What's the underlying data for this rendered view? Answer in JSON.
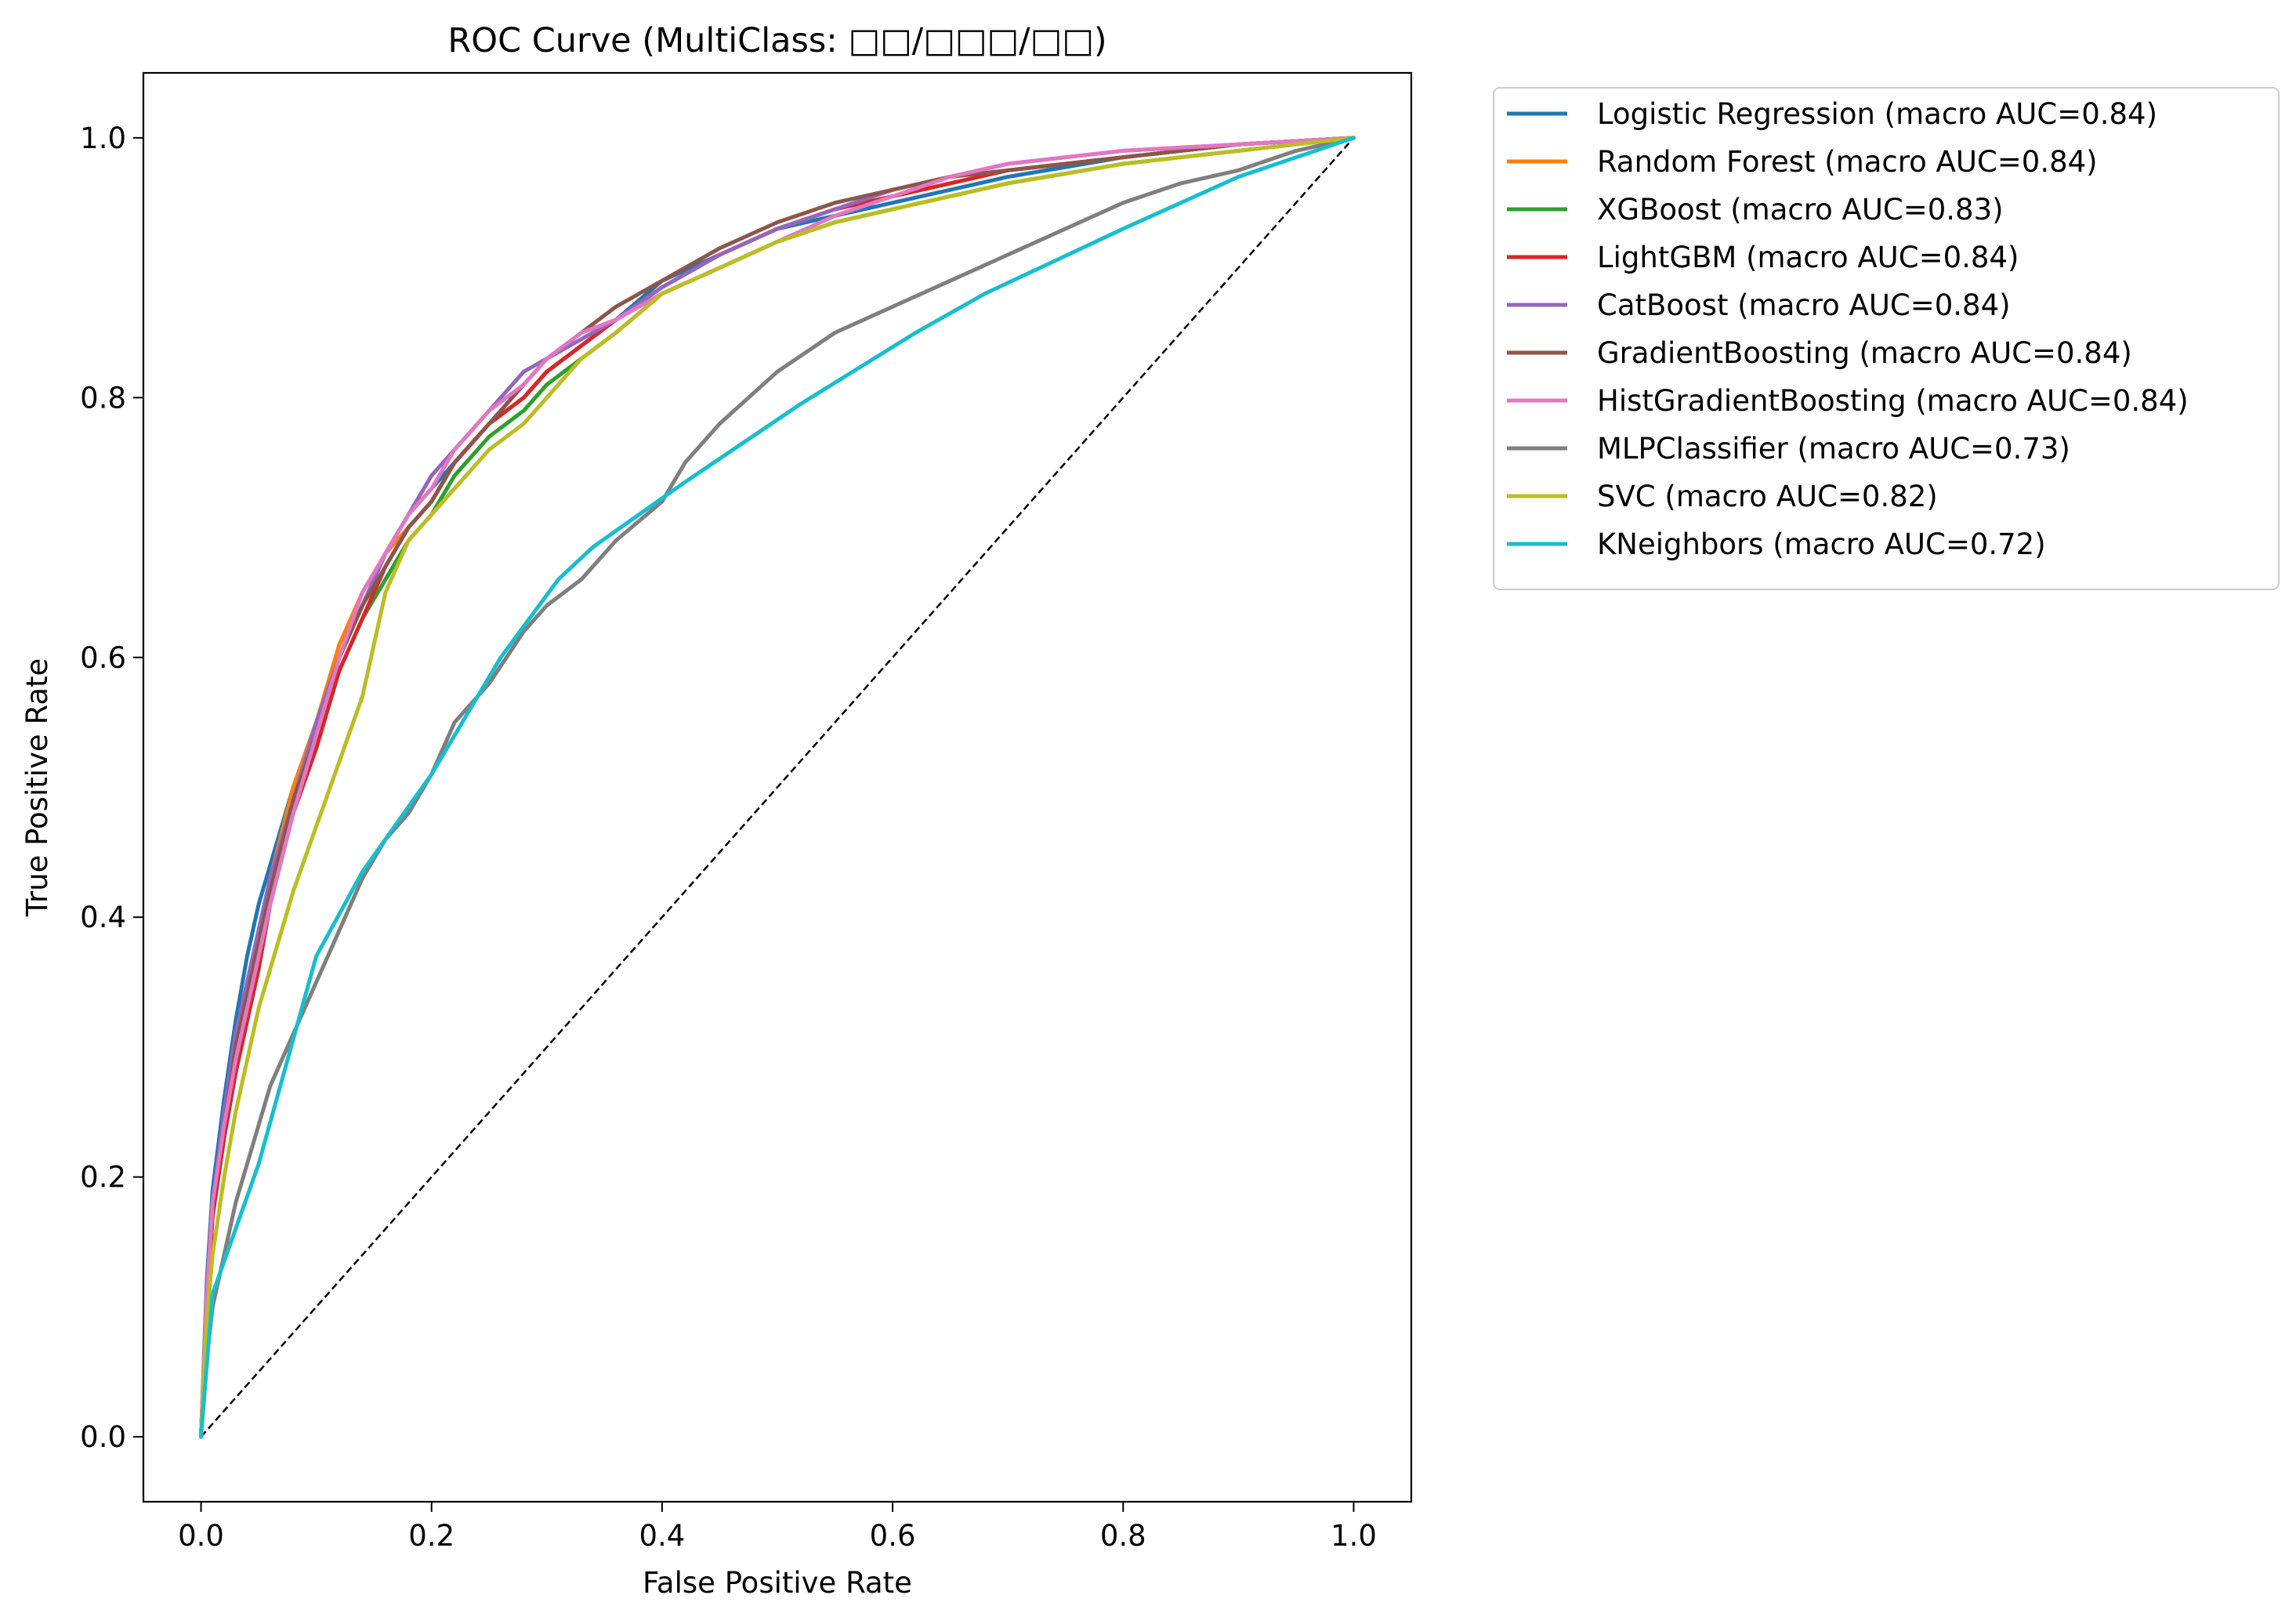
{
  "chart_data": {
    "type": "line",
    "title": "ROC Curve (MultiClass: □□/□□□/□□)",
    "xlabel": "False Positive Rate",
    "ylabel": "True Positive Rate",
    "xlim": [
      -0.05,
      1.05
    ],
    "ylim": [
      -0.05,
      1.05
    ],
    "xticks": [
      "0.0",
      "0.2",
      "0.4",
      "0.6",
      "0.8",
      "1.0"
    ],
    "yticks": [
      "0.0",
      "0.2",
      "0.4",
      "0.6",
      "0.8",
      "1.0"
    ],
    "grid": false,
    "legend_position": "outside top-right",
    "diagonal": {
      "style": "dashed",
      "color": "#000000",
      "points": [
        [
          0,
          0
        ],
        [
          1,
          1
        ]
      ]
    },
    "series": [
      {
        "name": "Logistic Regression (macro AUC=0.84)",
        "color": "#1f77b4",
        "x": [
          0,
          0.005,
          0.01,
          0.02,
          0.03,
          0.04,
          0.05,
          0.06,
          0.08,
          0.1,
          0.12,
          0.14,
          0.16,
          0.18,
          0.2,
          0.22,
          0.25,
          0.28,
          0.3,
          0.33,
          0.36,
          0.4,
          0.45,
          0.5,
          0.55,
          0.6,
          0.65,
          0.7,
          0.8,
          0.9,
          1.0
        ],
        "y": [
          0,
          0.12,
          0.19,
          0.26,
          0.32,
          0.37,
          0.41,
          0.44,
          0.5,
          0.55,
          0.6,
          0.64,
          0.68,
          0.71,
          0.73,
          0.75,
          0.78,
          0.8,
          0.82,
          0.84,
          0.86,
          0.89,
          0.91,
          0.93,
          0.94,
          0.95,
          0.96,
          0.97,
          0.985,
          0.995,
          1.0
        ]
      },
      {
        "name": "Random Forest (macro AUC=0.84)",
        "color": "#ff7f0e",
        "x": [
          0,
          0.005,
          0.01,
          0.02,
          0.03,
          0.04,
          0.05,
          0.06,
          0.08,
          0.1,
          0.12,
          0.14,
          0.16,
          0.18,
          0.2,
          0.22,
          0.25,
          0.28,
          0.3,
          0.33,
          0.36,
          0.4,
          0.45,
          0.5,
          0.55,
          0.6,
          0.65,
          0.7,
          0.8,
          0.9,
          1.0
        ],
        "y": [
          0,
          0.11,
          0.18,
          0.24,
          0.3,
          0.35,
          0.39,
          0.43,
          0.5,
          0.55,
          0.61,
          0.65,
          0.68,
          0.7,
          0.72,
          0.75,
          0.78,
          0.8,
          0.82,
          0.84,
          0.86,
          0.885,
          0.91,
          0.93,
          0.945,
          0.955,
          0.965,
          0.975,
          0.985,
          0.995,
          1.0
        ]
      },
      {
        "name": "XGBoost (macro AUC=0.83)",
        "color": "#2ca02c",
        "x": [
          0,
          0.005,
          0.01,
          0.02,
          0.03,
          0.04,
          0.05,
          0.06,
          0.08,
          0.1,
          0.12,
          0.14,
          0.16,
          0.18,
          0.2,
          0.22,
          0.25,
          0.28,
          0.3,
          0.33,
          0.36,
          0.4,
          0.45,
          0.5,
          0.55,
          0.6,
          0.65,
          0.7,
          0.8,
          0.9,
          1.0
        ],
        "y": [
          0,
          0.1,
          0.17,
          0.23,
          0.29,
          0.34,
          0.38,
          0.42,
          0.48,
          0.54,
          0.59,
          0.63,
          0.66,
          0.69,
          0.71,
          0.74,
          0.77,
          0.79,
          0.81,
          0.83,
          0.85,
          0.88,
          0.9,
          0.92,
          0.935,
          0.945,
          0.955,
          0.965,
          0.98,
          0.99,
          1.0
        ]
      },
      {
        "name": "LightGBM (macro AUC=0.84)",
        "color": "#d62728",
        "x": [
          0,
          0.005,
          0.01,
          0.02,
          0.03,
          0.04,
          0.05,
          0.06,
          0.08,
          0.1,
          0.12,
          0.14,
          0.16,
          0.18,
          0.2,
          0.22,
          0.25,
          0.28,
          0.3,
          0.33,
          0.36,
          0.4,
          0.45,
          0.5,
          0.55,
          0.6,
          0.65,
          0.7,
          0.8,
          0.9,
          1.0
        ],
        "y": [
          0,
          0.1,
          0.17,
          0.23,
          0.28,
          0.32,
          0.36,
          0.41,
          0.48,
          0.53,
          0.59,
          0.63,
          0.67,
          0.7,
          0.72,
          0.75,
          0.78,
          0.8,
          0.82,
          0.84,
          0.86,
          0.885,
          0.91,
          0.93,
          0.945,
          0.955,
          0.965,
          0.975,
          0.985,
          0.995,
          1.0
        ]
      },
      {
        "name": "CatBoost (macro AUC=0.84)",
        "color": "#9467bd",
        "x": [
          0,
          0.005,
          0.01,
          0.02,
          0.03,
          0.04,
          0.05,
          0.06,
          0.08,
          0.1,
          0.12,
          0.14,
          0.16,
          0.18,
          0.2,
          0.22,
          0.25,
          0.28,
          0.3,
          0.33,
          0.36,
          0.4,
          0.45,
          0.5,
          0.55,
          0.6,
          0.65,
          0.7,
          0.8,
          0.9,
          1.0
        ],
        "y": [
          0,
          0.11,
          0.18,
          0.25,
          0.31,
          0.35,
          0.39,
          0.43,
          0.49,
          0.55,
          0.6,
          0.64,
          0.68,
          0.71,
          0.74,
          0.76,
          0.79,
          0.82,
          0.83,
          0.845,
          0.86,
          0.885,
          0.91,
          0.93,
          0.945,
          0.96,
          0.97,
          0.98,
          0.99,
          0.995,
          1.0
        ]
      },
      {
        "name": "GradientBoosting (macro AUC=0.84)",
        "color": "#8c564b",
        "x": [
          0,
          0.005,
          0.01,
          0.02,
          0.03,
          0.04,
          0.05,
          0.06,
          0.08,
          0.1,
          0.12,
          0.14,
          0.16,
          0.18,
          0.2,
          0.22,
          0.25,
          0.28,
          0.3,
          0.33,
          0.36,
          0.4,
          0.45,
          0.5,
          0.55,
          0.6,
          0.65,
          0.7,
          0.8,
          0.9,
          1.0
        ],
        "y": [
          0,
          0.11,
          0.18,
          0.24,
          0.3,
          0.34,
          0.38,
          0.42,
          0.49,
          0.54,
          0.6,
          0.64,
          0.67,
          0.7,
          0.72,
          0.75,
          0.78,
          0.81,
          0.83,
          0.85,
          0.87,
          0.89,
          0.915,
          0.935,
          0.95,
          0.96,
          0.97,
          0.975,
          0.985,
          0.995,
          1.0
        ]
      },
      {
        "name": "HistGradientBoosting (macro AUC=0.84)",
        "color": "#e377c2",
        "x": [
          0,
          0.005,
          0.01,
          0.02,
          0.03,
          0.04,
          0.05,
          0.06,
          0.08,
          0.1,
          0.12,
          0.14,
          0.16,
          0.18,
          0.2,
          0.22,
          0.25,
          0.28,
          0.3,
          0.33,
          0.36,
          0.4,
          0.45,
          0.5,
          0.55,
          0.6,
          0.65,
          0.7,
          0.8,
          0.9,
          1.0
        ],
        "y": [
          0,
          0.11,
          0.18,
          0.24,
          0.29,
          0.33,
          0.37,
          0.41,
          0.48,
          0.54,
          0.6,
          0.65,
          0.68,
          0.71,
          0.73,
          0.76,
          0.79,
          0.81,
          0.83,
          0.85,
          0.86,
          0.88,
          0.9,
          0.92,
          0.94,
          0.955,
          0.97,
          0.98,
          0.99,
          0.995,
          1.0
        ]
      },
      {
        "name": "MLPClassifier (macro AUC=0.73)",
        "color": "#7f7f7f",
        "x": [
          0,
          0.005,
          0.01,
          0.02,
          0.03,
          0.04,
          0.05,
          0.06,
          0.08,
          0.1,
          0.12,
          0.14,
          0.16,
          0.18,
          0.2,
          0.22,
          0.25,
          0.28,
          0.3,
          0.33,
          0.36,
          0.4,
          0.42,
          0.45,
          0.5,
          0.55,
          0.6,
          0.65,
          0.7,
          0.75,
          0.8,
          0.85,
          0.9,
          0.95,
          1.0
        ],
        "y": [
          0,
          0.06,
          0.1,
          0.14,
          0.18,
          0.21,
          0.24,
          0.27,
          0.31,
          0.35,
          0.39,
          0.43,
          0.46,
          0.48,
          0.51,
          0.55,
          0.58,
          0.62,
          0.64,
          0.66,
          0.69,
          0.72,
          0.75,
          0.78,
          0.82,
          0.85,
          0.87,
          0.89,
          0.91,
          0.93,
          0.95,
          0.965,
          0.975,
          0.99,
          1.0
        ]
      },
      {
        "name": "SVC (macro AUC=0.82)",
        "color": "#bcbd22",
        "x": [
          0,
          0.005,
          0.01,
          0.02,
          0.03,
          0.04,
          0.05,
          0.06,
          0.08,
          0.1,
          0.12,
          0.14,
          0.16,
          0.18,
          0.2,
          0.22,
          0.25,
          0.28,
          0.3,
          0.33,
          0.36,
          0.4,
          0.45,
          0.5,
          0.55,
          0.6,
          0.65,
          0.7,
          0.8,
          0.9,
          1.0
        ],
        "y": [
          0,
          0.09,
          0.14,
          0.2,
          0.25,
          0.29,
          0.33,
          0.36,
          0.42,
          0.47,
          0.52,
          0.57,
          0.65,
          0.69,
          0.71,
          0.73,
          0.76,
          0.78,
          0.8,
          0.83,
          0.85,
          0.88,
          0.9,
          0.92,
          0.935,
          0.945,
          0.955,
          0.965,
          0.98,
          0.99,
          1.0
        ]
      },
      {
        "name": "KNeighbors (macro AUC=0.72)",
        "color": "#17becf",
        "x": [
          0,
          0.01,
          0.05,
          0.1,
          0.14,
          0.2,
          0.26,
          0.31,
          0.34,
          0.42,
          0.52,
          0.62,
          0.68,
          0.8,
          0.9,
          1.0
        ],
        "y": [
          0,
          0.11,
          0.21,
          0.37,
          0.435,
          0.51,
          0.6,
          0.66,
          0.685,
          0.735,
          0.795,
          0.85,
          0.88,
          0.93,
          0.97,
          1.0
        ]
      }
    ]
  }
}
